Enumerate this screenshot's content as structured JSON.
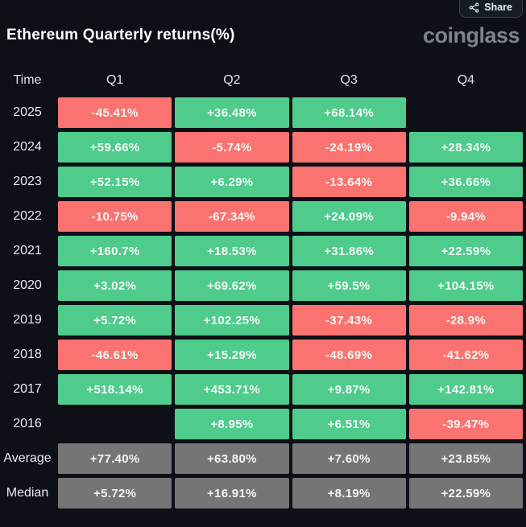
{
  "header": {
    "title": "Ethereum Quarterly returns(%)",
    "logo": "coinglass",
    "share_label": "Share"
  },
  "colors": {
    "background": "#0d1017",
    "positive": "#4fcb8c",
    "negative": "#fa7370",
    "neutral": "#757575",
    "cell_text": "#f2f8f5",
    "title_text": "#ffffff",
    "logo_text": "#7d838e"
  },
  "chart_data": {
    "type": "heatmap",
    "title": "Ethereum Quarterly returns(%)",
    "unit": "%",
    "legend_rule": "green = positive return, red = negative return, gray = summary rows (Average/Median), blank = no data",
    "columns": [
      "Time",
      "Q1",
      "Q2",
      "Q3",
      "Q4"
    ],
    "rows": [
      {
        "label": "2025",
        "cells": [
          {
            "display": "-45.41%",
            "value": -45.41,
            "tone": "negative"
          },
          {
            "display": "+36.48%",
            "value": 36.48,
            "tone": "positive"
          },
          {
            "display": "+68.14%",
            "value": 68.14,
            "tone": "positive"
          },
          {
            "display": "",
            "value": null,
            "tone": "empty"
          }
        ]
      },
      {
        "label": "2024",
        "cells": [
          {
            "display": "+59.66%",
            "value": 59.66,
            "tone": "positive"
          },
          {
            "display": "-5.74%",
            "value": -5.74,
            "tone": "negative"
          },
          {
            "display": "-24.19%",
            "value": -24.19,
            "tone": "negative"
          },
          {
            "display": "+28.34%",
            "value": 28.34,
            "tone": "positive"
          }
        ]
      },
      {
        "label": "2023",
        "cells": [
          {
            "display": "+52.15%",
            "value": 52.15,
            "tone": "positive"
          },
          {
            "display": "+6.29%",
            "value": 6.29,
            "tone": "positive"
          },
          {
            "display": "-13.64%",
            "value": -13.64,
            "tone": "negative"
          },
          {
            "display": "+36.66%",
            "value": 36.66,
            "tone": "positive"
          }
        ]
      },
      {
        "label": "2022",
        "cells": [
          {
            "display": "-10.75%",
            "value": -10.75,
            "tone": "negative"
          },
          {
            "display": "-67.34%",
            "value": -67.34,
            "tone": "negative"
          },
          {
            "display": "+24.09%",
            "value": 24.09,
            "tone": "positive"
          },
          {
            "display": "-9.94%",
            "value": -9.94,
            "tone": "negative"
          }
        ]
      },
      {
        "label": "2021",
        "cells": [
          {
            "display": "+160.7%",
            "value": 160.7,
            "tone": "positive"
          },
          {
            "display": "+18.53%",
            "value": 18.53,
            "tone": "positive"
          },
          {
            "display": "+31.86%",
            "value": 31.86,
            "tone": "positive"
          },
          {
            "display": "+22.59%",
            "value": 22.59,
            "tone": "positive"
          }
        ]
      },
      {
        "label": "2020",
        "cells": [
          {
            "display": "+3.02%",
            "value": 3.02,
            "tone": "positive"
          },
          {
            "display": "+69.62%",
            "value": 69.62,
            "tone": "positive"
          },
          {
            "display": "+59.5%",
            "value": 59.5,
            "tone": "positive"
          },
          {
            "display": "+104.15%",
            "value": 104.15,
            "tone": "positive"
          }
        ]
      },
      {
        "label": "2019",
        "cells": [
          {
            "display": "+5.72%",
            "value": 5.72,
            "tone": "positive"
          },
          {
            "display": "+102.25%",
            "value": 102.25,
            "tone": "positive"
          },
          {
            "display": "-37.43%",
            "value": -37.43,
            "tone": "negative"
          },
          {
            "display": "-28.9%",
            "value": -28.9,
            "tone": "negative"
          }
        ]
      },
      {
        "label": "2018",
        "cells": [
          {
            "display": "-46.61%",
            "value": -46.61,
            "tone": "negative"
          },
          {
            "display": "+15.29%",
            "value": 15.29,
            "tone": "positive"
          },
          {
            "display": "-48.69%",
            "value": -48.69,
            "tone": "negative"
          },
          {
            "display": "-41.62%",
            "value": -41.62,
            "tone": "negative"
          }
        ]
      },
      {
        "label": "2017",
        "cells": [
          {
            "display": "+518.14%",
            "value": 518.14,
            "tone": "positive"
          },
          {
            "display": "+453.71%",
            "value": 453.71,
            "tone": "positive"
          },
          {
            "display": "+9.87%",
            "value": 9.87,
            "tone": "positive"
          },
          {
            "display": "+142.81%",
            "value": 142.81,
            "tone": "positive"
          }
        ]
      },
      {
        "label": "2016",
        "cells": [
          {
            "display": "",
            "value": null,
            "tone": "empty"
          },
          {
            "display": "+8.95%",
            "value": 8.95,
            "tone": "positive"
          },
          {
            "display": "+6.51%",
            "value": 6.51,
            "tone": "positive"
          },
          {
            "display": "-39.47%",
            "value": -39.47,
            "tone": "negative"
          }
        ]
      },
      {
        "label": "Average",
        "cells": [
          {
            "display": "+77.40%",
            "value": 77.4,
            "tone": "neutral"
          },
          {
            "display": "+63.80%",
            "value": 63.8,
            "tone": "neutral"
          },
          {
            "display": "+7.60%",
            "value": 7.6,
            "tone": "neutral"
          },
          {
            "display": "+23.85%",
            "value": 23.85,
            "tone": "neutral"
          }
        ]
      },
      {
        "label": "Median",
        "cells": [
          {
            "display": "+5.72%",
            "value": 5.72,
            "tone": "neutral"
          },
          {
            "display": "+16.91%",
            "value": 16.91,
            "tone": "neutral"
          },
          {
            "display": "+8.19%",
            "value": 8.19,
            "tone": "neutral"
          },
          {
            "display": "+22.59%",
            "value": 22.59,
            "tone": "neutral"
          }
        ]
      }
    ]
  }
}
